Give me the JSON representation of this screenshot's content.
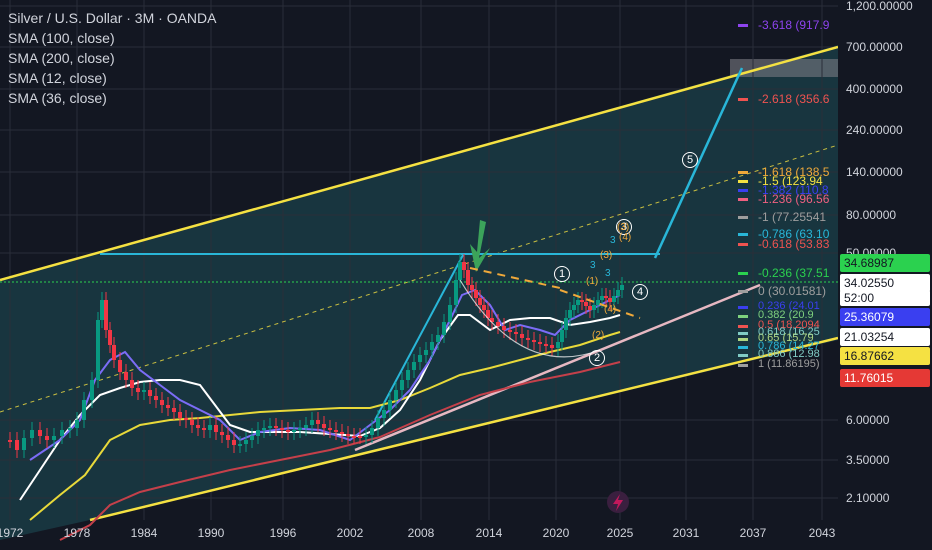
{
  "title": "Silver / U.S. Dollar · 3M · OANDA",
  "indicators": [
    "SMA (100, close)",
    "SMA (200, close)",
    "SMA (12, close)",
    "SMA (36, close)"
  ],
  "colors": {
    "background": "#131722",
    "channel": "#f5e142",
    "fill": "#1f5a64",
    "cyan": "#29b6d8",
    "bull": "#089981",
    "bear": "#f23645",
    "sma12": "#7b6cf6",
    "sma36": "#ffffff",
    "sma100": "#e8d93a",
    "sma200": "#c4404a",
    "pink": "#e6b8c2"
  },
  "price_axis": {
    "ticks": [
      "1,200.00000",
      "700.00000",
      "400.00000",
      "240.00000",
      "140.00000",
      "80.00000",
      "50.00000",
      "6.00000",
      "3.50000",
      "2.10000"
    ]
  },
  "time_axis": {
    "ticks": [
      "1972",
      "1978",
      "1984",
      "1990",
      "1996",
      "2002",
      "2008",
      "2014",
      "2020",
      "2025",
      "2031",
      "2037",
      "2043"
    ]
  },
  "price_tags": [
    {
      "text": "34.68987",
      "bg": "#2bd14f",
      "fg": "#131722"
    },
    {
      "text": "34.02550",
      "bg": "#ffffff",
      "fg": "#131722"
    },
    {
      "text": "52:00",
      "bg": "#ffffff",
      "fg": "#131722"
    },
    {
      "text": "25.36079",
      "bg": "#3a3ff0",
      "fg": "#ffffff"
    },
    {
      "text": "21.03254",
      "bg": "#ffffff",
      "fg": "#131722"
    },
    {
      "text": "16.87662",
      "bg": "#f5e142",
      "fg": "#131722"
    },
    {
      "text": "11.76015",
      "bg": "#e53935",
      "fg": "#ffffff"
    }
  ],
  "fib_levels": [
    {
      "text": "-3.618 (917.9",
      "color": "#8e44ef"
    },
    {
      "text": "-2.618 (356.6",
      "color": "#ef5350"
    },
    {
      "text": "-1.618 (138.5",
      "color": "#f0a93a"
    },
    {
      "text": "-1.5 (123.94",
      "color": "#f5e142"
    },
    {
      "text": "-1.382 (110.8",
      "color": "#3a3ff0"
    },
    {
      "text": "-1.236 (96.56",
      "color": "#f06080"
    },
    {
      "text": "-1 (77.25541",
      "color": "#9e9e9e"
    },
    {
      "text": "-0.786 (63.10",
      "color": "#29b6d8"
    },
    {
      "text": "-0.618 (53.83",
      "color": "#ef5350"
    },
    {
      "text": "-0.236 (37.51",
      "color": "#2bd14f"
    },
    {
      "text": "0 (30.01581)",
      "color": "#9e9e9e"
    },
    {
      "text": "0.236 (24.01",
      "color": "#3a3ff0"
    },
    {
      "text": "0.382 (20.9",
      "color": "#7ed17e"
    },
    {
      "text": "0.5 (18.2094",
      "color": "#ef5350"
    },
    {
      "text": "0.618 (16.25",
      "color": "#80cbc4"
    },
    {
      "text": "0.65 (15.79",
      "color": "#aed581"
    },
    {
      "text": "0.786 (14.27",
      "color": "#29b6d8"
    },
    {
      "text": "0.886 (12.98",
      "color": "#80cbc4"
    },
    {
      "text": "1 (11.86195)",
      "color": "#9e9e9e"
    }
  ],
  "wave_labels": [
    "1",
    "2",
    "3",
    "4",
    "5"
  ],
  "sub_wave_labels": [
    "(1)",
    "(2)",
    "(3)",
    "(4)",
    "(3)",
    "(4)"
  ],
  "small_marks": [
    "3",
    "3",
    "3"
  ],
  "footer_icon": "lightning-icon"
}
